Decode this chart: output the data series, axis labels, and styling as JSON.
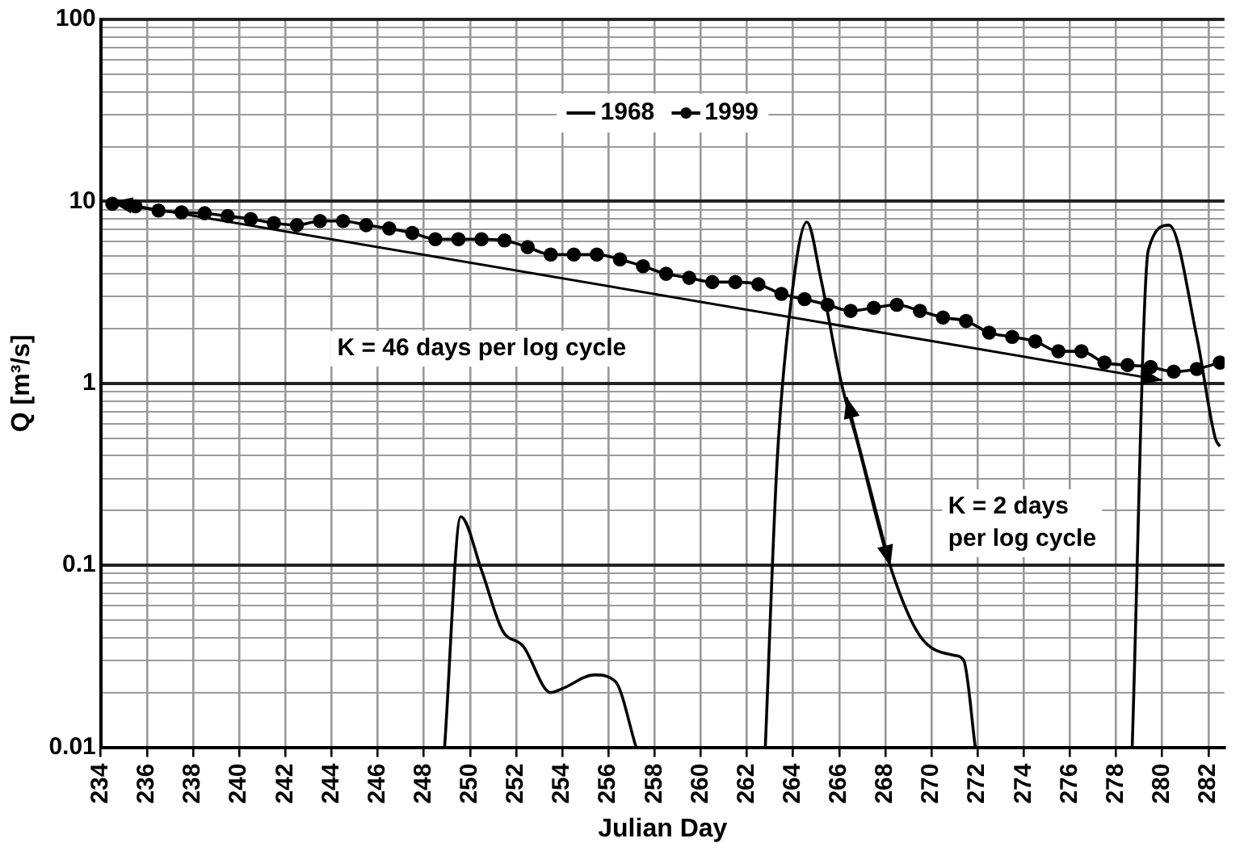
{
  "chart_data": {
    "type": "line",
    "xlabel": "Julian Day",
    "ylabel": "Q [m³/s]",
    "log": "y",
    "grid": true,
    "legend": "top",
    "xlim": [
      234,
      282.7
    ],
    "xticks": [
      234,
      236,
      238,
      240,
      242,
      244,
      246,
      248,
      250,
      252,
      254,
      256,
      258,
      260,
      262,
      264,
      266,
      268,
      270,
      272,
      274,
      276,
      278,
      280,
      282
    ],
    "ylim": [
      0.01,
      100
    ],
    "yticks": [
      0.01,
      {
        "value": 0.02,
        "label": null
      },
      {
        "value": 0.03,
        "label": null
      },
      {
        "value": 0.04,
        "label": null
      },
      {
        "value": 0.05,
        "label": null
      },
      {
        "value": 0.06,
        "label": null
      },
      {
        "value": 0.07,
        "label": null
      },
      {
        "value": 0.08,
        "label": null
      },
      {
        "value": 0.09,
        "label": null
      },
      0.1,
      {
        "value": 0.2,
        "label": null
      },
      {
        "value": 0.3,
        "label": null
      },
      {
        "value": 0.4,
        "label": null
      },
      {
        "value": 0.5,
        "label": null
      },
      {
        "value": 0.6,
        "label": null
      },
      {
        "value": 0.7,
        "label": null
      },
      {
        "value": 0.8,
        "label": null
      },
      {
        "value": 0.9,
        "label": null
      },
      1,
      {
        "value": 2,
        "label": null
      },
      {
        "value": 3,
        "label": null
      },
      {
        "value": 4,
        "label": null
      },
      {
        "value": 5,
        "label": null
      },
      {
        "value": 6,
        "label": null
      },
      {
        "value": 7,
        "label": null
      },
      {
        "value": 8,
        "label": null
      },
      {
        "value": 9,
        "label": null
      },
      10,
      {
        "value": 20,
        "label": null
      },
      {
        "value": 30,
        "label": null
      },
      {
        "value": 40,
        "label": null
      },
      {
        "value": 50,
        "label": null
      },
      {
        "value": 60,
        "label": null
      },
      {
        "value": 70,
        "label": null
      },
      {
        "value": 80,
        "label": null
      },
      {
        "value": 90,
        "label": null
      },
      100
    ],
    "series": [
      {
        "name": "1968",
        "color": "#000000",
        "marker": "none",
        "x": [
          248.9,
          249.6,
          250.5,
          251.4,
          252.3,
          253.5,
          254,
          255.4,
          256.3,
          257.2,
          257.5,
          262.8,
          263.3,
          263.8,
          264.6,
          265.2,
          266.1,
          266.8,
          268.2,
          269.5,
          271,
          271.4,
          271.9,
          272.2,
          278.7,
          279.4,
          280.3,
          281.5,
          282.3,
          282.5
        ],
        "values": [
          0.01,
          0.185,
          0.094,
          0.044,
          0.036,
          0.02,
          0.021,
          0.025,
          0.023,
          0.01,
          null,
          0.01,
          0.35,
          2.1,
          7.7,
          3.8,
          1.0,
          0.47,
          0.1,
          0.041,
          0.032,
          0.03,
          0.01,
          null,
          0.01,
          5.4,
          7.4,
          1.8,
          0.5,
          0.45
        ]
      },
      {
        "name": "1999",
        "color": "#000000",
        "marker": "circle",
        "x": [
          234.5,
          235.5,
          236.5,
          237.5,
          238.5,
          239.5,
          240.5,
          241.5,
          242.5,
          243.5,
          244.5,
          245.5,
          246.5,
          247.5,
          248.5,
          249.5,
          250.5,
          251.5,
          252.5,
          253.5,
          254.5,
          255.5,
          256.5,
          257.5,
          258.5,
          259.5,
          260.5,
          261.5,
          262.5,
          263.5,
          264.5,
          265.5,
          266.5,
          267.5,
          268.5,
          269.5,
          270.5,
          271.5,
          272.5,
          273.5,
          274.5,
          275.5,
          276.5,
          277.5,
          278.5,
          279.5,
          280.5,
          281.5,
          282.5
        ],
        "values": [
          9.7,
          9.4,
          8.9,
          8.7,
          8.6,
          8.3,
          8.0,
          7.6,
          7.4,
          7.8,
          7.8,
          7.4,
          7.1,
          6.7,
          6.2,
          6.2,
          6.2,
          6.1,
          5.6,
          5.1,
          5.1,
          5.1,
          4.8,
          4.4,
          4.0,
          3.8,
          3.6,
          3.6,
          3.5,
          3.1,
          2.9,
          2.7,
          2.5,
          2.6,
          2.7,
          2.5,
          2.3,
          2.2,
          1.9,
          1.8,
          1.7,
          1.5,
          1.5,
          1.3,
          1.26,
          1.23,
          1.16,
          1.2,
          1.3
        ]
      }
    ],
    "annotations": [
      "K = 46 days per log cycle",
      "K = 2 days\nper log cycle"
    ]
  }
}
